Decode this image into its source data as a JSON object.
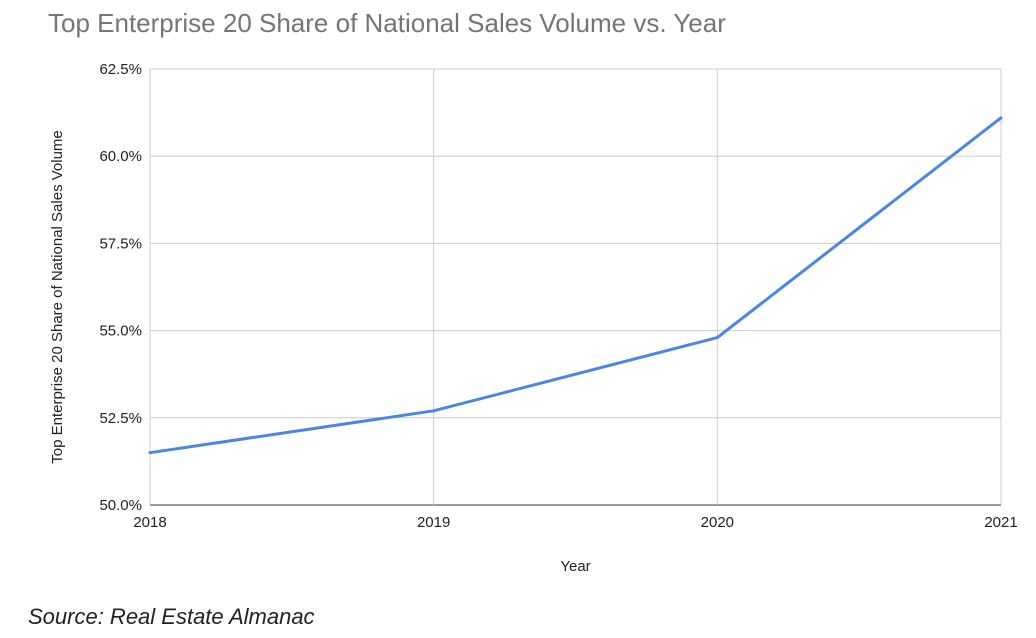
{
  "chart_data": {
    "type": "line",
    "title": "Top Enterprise 20 Share of National Sales Volume vs. Year",
    "xlabel": "Year",
    "ylabel": "Top Enterprise 20 Share of National Sales Volume",
    "x": [
      "2018",
      "2019",
      "2020",
      "2021"
    ],
    "series": [
      {
        "values": [
          51.5,
          52.7,
          54.8,
          61.1
        ],
        "color": "#4a86e8"
      }
    ],
    "ylim": [
      50,
      62.5
    ],
    "yticks": [
      "50.0%",
      "52.5%",
      "55.0%",
      "57.5%",
      "60.0%",
      "62.5%"
    ],
    "xticks": [
      "2018",
      "2019",
      "2020",
      "2021"
    ],
    "grid": true,
    "legend": "none"
  },
  "source": "Source: Real Estate Almanac"
}
